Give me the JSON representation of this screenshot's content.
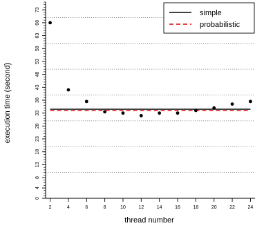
{
  "chart_data": {
    "type": "scatter",
    "xlabel": "thread number",
    "ylabel": "execution time (second)",
    "x_ticks": [
      2,
      4,
      6,
      8,
      10,
      12,
      14,
      16,
      18,
      20,
      22,
      24
    ],
    "y_ticks": [
      0,
      4,
      8,
      13,
      18,
      23,
      28,
      33,
      38,
      43,
      48,
      53,
      58,
      63,
      68,
      73
    ],
    "xlim": [
      1.5,
      24.5
    ],
    "ylim": [
      0,
      76
    ],
    "grid": "horizontal dotted lines at 10, 20, 30, 40, 50, 60, 70",
    "grid_lines_y": [
      10,
      20,
      30,
      40,
      50,
      60,
      70
    ],
    "series": [
      {
        "name": "",
        "kind": "points",
        "color": "#000000",
        "x": [
          2,
          4,
          6,
          8,
          10,
          12,
          14,
          16,
          18,
          20,
          22,
          24
        ],
        "y": [
          68,
          42,
          37.5,
          33.5,
          33,
          32,
          33,
          33,
          34,
          35,
          36.5,
          37.5
        ]
      }
    ],
    "reference_lines": [
      {
        "name": "simple",
        "y": 34.5,
        "style": "solid",
        "color": "#000000"
      },
      {
        "name": "probabilistic",
        "y": 34,
        "style": "dashed",
        "color": "#e00000"
      }
    ],
    "legend": {
      "placement": "top-right",
      "entries": [
        {
          "label": "simple",
          "style": "solid",
          "color": "#000000"
        },
        {
          "label": "probabilistic",
          "style": "dashed",
          "color": "#e00000"
        }
      ]
    }
  }
}
